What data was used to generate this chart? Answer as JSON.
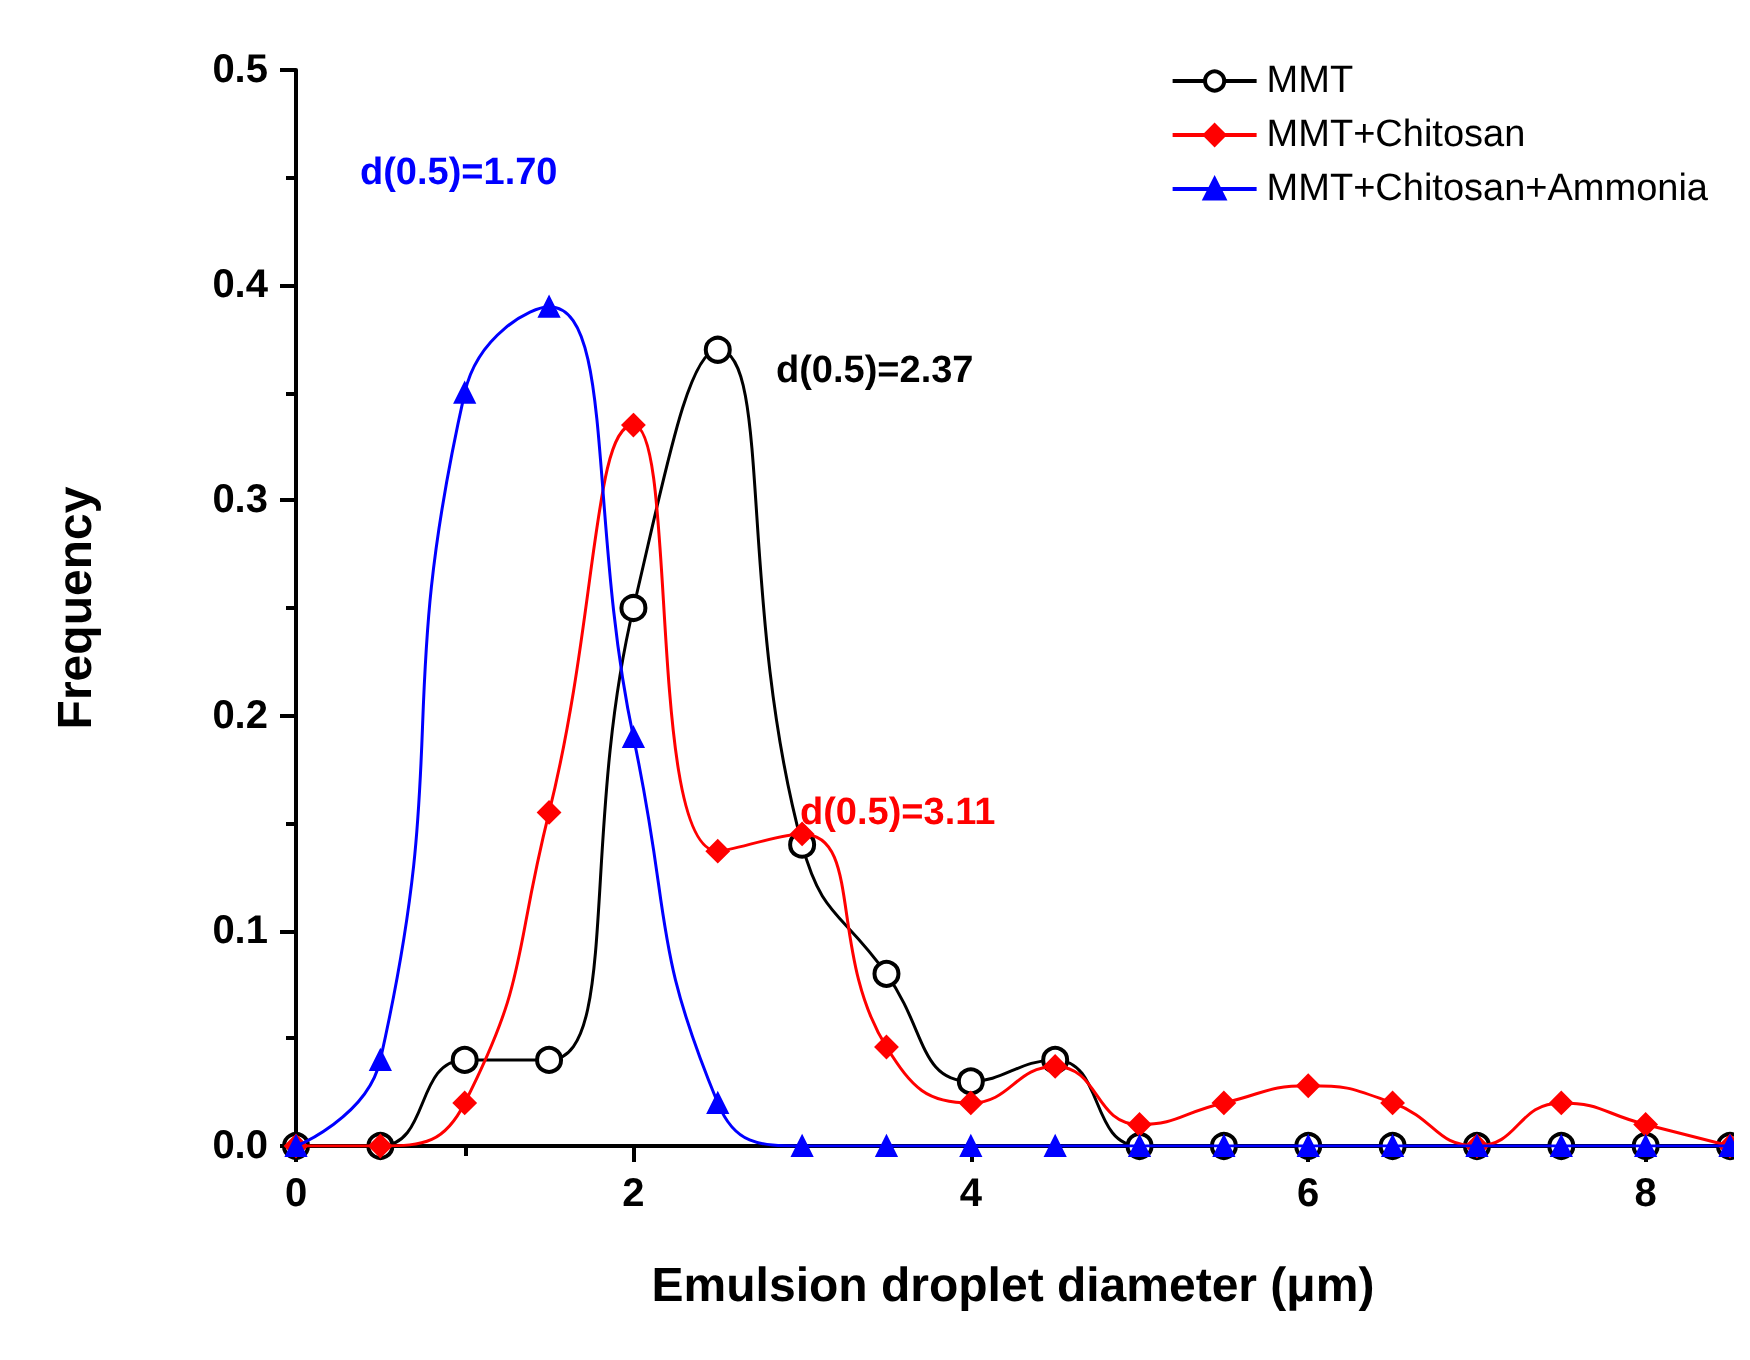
{
  "chart_data": {
    "type": "line",
    "xlabel": "Emulsion droplet diameter (μm)",
    "ylabel": "Frequency",
    "x": [
      0,
      0.5,
      1,
      1.5,
      2,
      2.5,
      3,
      3.5,
      4,
      4.5,
      5,
      5.5,
      6,
      6.5,
      7,
      7.5,
      8,
      8.5
    ],
    "series": [
      {
        "name": "MMT",
        "color": "#000000",
        "marker": "circle",
        "values": [
          0,
          0,
          0.04,
          0.04,
          0.25,
          0.37,
          0.14,
          0.08,
          0.03,
          0.04,
          0,
          0,
          0,
          0,
          0,
          0,
          0,
          0
        ]
      },
      {
        "name": "MMT+Chitosan",
        "color": "#ff0000",
        "marker": "diamond",
        "values": [
          0,
          0,
          0.02,
          0.155,
          0.335,
          0.137,
          0.145,
          0.046,
          0.02,
          0.037,
          0.01,
          0.02,
          0.028,
          0.02,
          0,
          0.02,
          0.01,
          0
        ]
      },
      {
        "name": "MMT+Chitosan+Ammonia",
        "color": "#0000ff",
        "marker": "triangle",
        "values": [
          0,
          0.04,
          0.35,
          0.39,
          0.19,
          0.02,
          0,
          0,
          0,
          0,
          0,
          0,
          0,
          0,
          0,
          0,
          0,
          0
        ]
      }
    ],
    "annotations": [
      "d(0.5)=2.37",
      "d(0.5)=3.11",
      "d(0.5)=1.70"
    ],
    "xlim": [
      0,
      8.5
    ],
    "xticks": [
      0,
      2,
      4,
      6,
      8
    ],
    "ylim": [
      0,
      0.5
    ],
    "yticks": [
      {
        "value": 0,
        "label": "0.0"
      },
      {
        "value": 0.1,
        "label": "0.1"
      },
      {
        "value": 0.2,
        "label": "0.2"
      },
      {
        "value": 0.3,
        "label": "0.3"
      },
      {
        "value": 0.4,
        "label": "0.4"
      },
      {
        "value": 0.5,
        "label": "0.5"
      }
    ],
    "grid": false,
    "legend": "top right"
  }
}
